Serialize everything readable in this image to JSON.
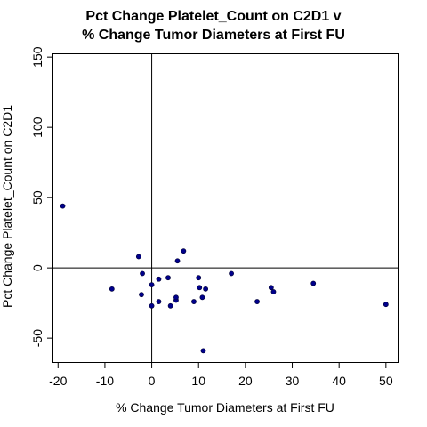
{
  "chart_data": {
    "type": "scatter",
    "title": "Pct Change Platelet_Count on C2D1 v",
    "subtitle": "% Change Tumor Diameters at First FU",
    "xlabel": "% Change Tumor Diameters at First FU",
    "ylabel": "Pct Change Platelet_Count on C2D1",
    "xlim": [
      -21,
      52.5
    ],
    "ylim": [
      -67,
      152
    ],
    "xticks": [
      -20,
      -10,
      0,
      10,
      20,
      30,
      40,
      50
    ],
    "yticks": [
      -50,
      0,
      50,
      100,
      150
    ],
    "reference_lines": {
      "x": 0,
      "y": 0
    },
    "grid": false,
    "marker_color": "#00008b",
    "points": [
      {
        "x": -19,
        "y": 44
      },
      {
        "x": -8.5,
        "y": -15
      },
      {
        "x": -2.8,
        "y": 8
      },
      {
        "x": -2.2,
        "y": -19
      },
      {
        "x": -2,
        "y": -4
      },
      {
        "x": 0,
        "y": -12
      },
      {
        "x": 0,
        "y": -27
      },
      {
        "x": 1.5,
        "y": -8
      },
      {
        "x": 1.5,
        "y": -24
      },
      {
        "x": 3.5,
        "y": -7
      },
      {
        "x": 4,
        "y": -27
      },
      {
        "x": 5.2,
        "y": -23
      },
      {
        "x": 5.2,
        "y": -21
      },
      {
        "x": 5.5,
        "y": 5
      },
      {
        "x": 6.8,
        "y": 12
      },
      {
        "x": 9,
        "y": -24
      },
      {
        "x": 10,
        "y": -7
      },
      {
        "x": 10.2,
        "y": -14
      },
      {
        "x": 10.8,
        "y": -21
      },
      {
        "x": 11,
        "y": -59
      },
      {
        "x": 11.5,
        "y": -15
      },
      {
        "x": 17,
        "y": -4
      },
      {
        "x": 22.5,
        "y": -24
      },
      {
        "x": 25.5,
        "y": -14
      },
      {
        "x": 26,
        "y": -17
      },
      {
        "x": 34.5,
        "y": -11
      },
      {
        "x": 50,
        "y": -26
      }
    ]
  }
}
